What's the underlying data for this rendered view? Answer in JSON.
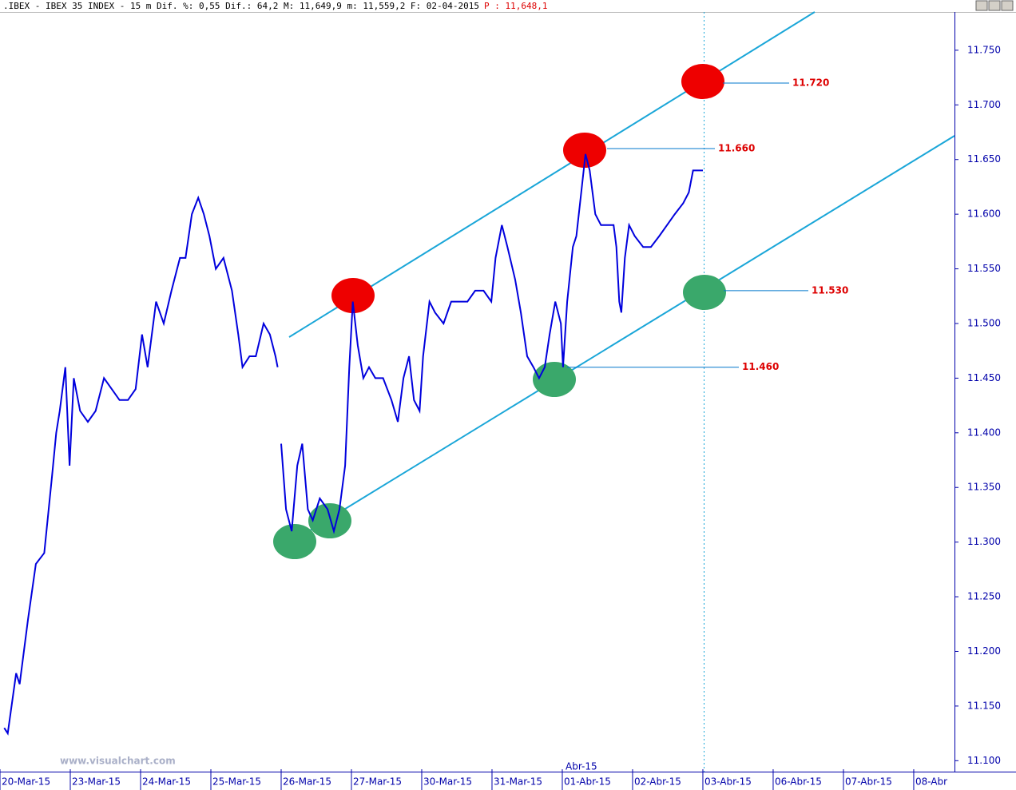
{
  "chart_data": {
    "type": "line",
    "title": ".IBEX - IBEX 35 INDEX -  15 m Dif. %: 0,55 Dif.: 64,2 M: 11,649,9 m: 11,559,2 F: 02-04-2015",
    "last_price": "P : 11,648,1",
    "watermark": "www.visualchart.com",
    "month_marker": "Abr-15",
    "series": [
      {
        "name": "IBEX 35",
        "color": "#0000dd",
        "x": [
          0.06,
          0.11,
          0.23,
          0.28,
          0.4,
          0.51,
          0.63,
          0.74,
          0.8,
          0.85,
          0.93,
          0.99,
          1.05,
          1.14,
          1.25,
          1.36,
          1.48,
          1.59,
          1.7,
          1.82,
          1.93,
          2.02,
          2.1,
          2.22,
          2.33,
          2.44,
          2.56,
          2.64,
          2.73,
          2.82,
          2.9,
          2.98,
          3.07,
          3.18,
          3.3,
          3.39,
          3.45,
          3.55,
          3.64,
          3.75,
          3.84,
          3.92,
          3.95,
          3.98,
          4.0,
          4.07,
          4.15,
          4.23,
          4.3,
          4.38,
          4.45,
          4.55,
          4.66,
          4.75,
          4.83,
          4.91,
          4.97,
          5.02,
          5.09,
          5.17,
          5.25,
          5.34,
          5.45,
          5.57,
          5.66,
          5.74,
          5.82,
          5.89,
          5.97,
          6.02,
          6.11,
          6.19,
          6.31,
          6.42,
          6.53,
          6.65,
          6.76,
          6.88,
          6.99,
          7.05,
          7.14,
          7.22,
          7.33,
          7.41,
          7.5,
          7.59,
          7.67,
          7.75,
          7.82,
          7.9,
          7.98,
          8.01,
          8.07,
          8.15,
          8.2,
          8.27,
          8.33,
          8.39,
          8.47,
          8.55,
          8.64,
          8.73,
          8.77,
          8.81,
          8.84,
          8.89,
          8.95,
          9.03,
          9.15,
          9.26,
          9.38,
          9.49,
          9.6,
          9.72,
          9.8,
          9.86,
          9.94,
          10.0
        ],
        "values": [
          11130,
          11125,
          11180,
          11170,
          11230,
          11280,
          11290,
          11360,
          11400,
          11420,
          11460,
          11370,
          11450,
          11420,
          11410,
          11420,
          11450,
          11440,
          11430,
          11430,
          11440,
          11490,
          11460,
          11520,
          11500,
          11530,
          11560,
          11560,
          11600,
          11615,
          11600,
          11580,
          11550,
          11560,
          11530,
          11490,
          11460,
          11470,
          11470,
          11500,
          11490,
          11470,
          11460,
          null,
          11390,
          11330,
          11310,
          11370,
          11390,
          11330,
          11320,
          11340,
          11330,
          11310,
          11330,
          11370,
          11460,
          11520,
          11480,
          11450,
          11460,
          11450,
          11450,
          11430,
          11410,
          11450,
          11470,
          11430,
          11420,
          11470,
          11520,
          11510,
          11500,
          11520,
          11520,
          11520,
          11530,
          11530,
          11520,
          11560,
          11590,
          11570,
          11540,
          11510,
          11470,
          11460,
          11450,
          11460,
          11490,
          11520,
          11500,
          11460,
          11520,
          11570,
          11580,
          11620,
          11655,
          11640,
          11600,
          11590,
          11590,
          11590,
          11570,
          11520,
          11510,
          11560,
          11590,
          11580,
          11570,
          11570,
          11580,
          11590,
          11600,
          11610,
          11620,
          11640,
          11640,
          11640
        ]
      }
    ],
    "annotations": [
      {
        "value": 11720,
        "label": "11.720"
      },
      {
        "value": 11660,
        "label": "11.660"
      },
      {
        "value": 11530,
        "label": "11.530"
      },
      {
        "value": 11460,
        "label": "11.460"
      }
    ],
    "xlim": [
      0,
      13.58
    ],
    "xticks": [
      {
        "value": 0,
        "label": "20-Mar-15"
      },
      {
        "value": 1,
        "label": "23-Mar-15"
      },
      {
        "value": 2,
        "label": "24-Mar-15"
      },
      {
        "value": 3,
        "label": "25-Mar-15"
      },
      {
        "value": 4,
        "label": "26-Mar-15"
      },
      {
        "value": 5,
        "label": "27-Mar-15"
      },
      {
        "value": 6,
        "label": "30-Mar-15"
      },
      {
        "value": 7,
        "label": "31-Mar-15"
      },
      {
        "value": 8,
        "label": "01-Abr-15"
      },
      {
        "value": 9,
        "label": "02-Abr-15"
      },
      {
        "value": 10,
        "label": "03-Abr-15"
      },
      {
        "value": 11,
        "label": "06-Abr-15"
      },
      {
        "value": 12,
        "label": "07-Abr-15"
      },
      {
        "value": 13,
        "label": "08-Abr"
      }
    ],
    "ylim": [
      11090,
      11785
    ],
    "yticks": [
      {
        "value": 11100,
        "label": "11.100"
      },
      {
        "value": 11150,
        "label": "11.150"
      },
      {
        "value": 11200,
        "label": "11.200"
      },
      {
        "value": 11250,
        "label": "11.250"
      },
      {
        "value": 11300,
        "label": "11.300"
      },
      {
        "value": 11350,
        "label": "11.350"
      },
      {
        "value": 11400,
        "label": "11.400"
      },
      {
        "value": 11450,
        "label": "11.450"
      },
      {
        "value": 11500,
        "label": "11.500"
      },
      {
        "value": 11550,
        "label": "11.550"
      },
      {
        "value": 11600,
        "label": "11.600"
      },
      {
        "value": 11650,
        "label": "11.650"
      },
      {
        "value": 11700,
        "label": "11.700"
      },
      {
        "value": 11750,
        "label": "11.750"
      }
    ],
    "annotation_color": "#dd0000"
  }
}
